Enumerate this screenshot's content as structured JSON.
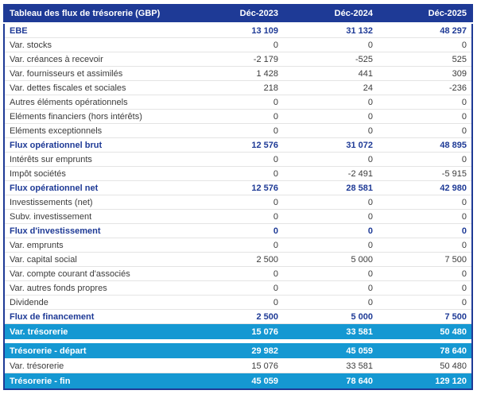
{
  "table": {
    "title": "Tableau des flux de trésorerie (GBP)",
    "columns": [
      "Déc-2023",
      "Déc-2024",
      "Déc-2025"
    ],
    "rows": [
      {
        "label": "EBE",
        "values": [
          "13 109",
          "31 132",
          "48 297"
        ],
        "style": "bold"
      },
      {
        "label": "Var. stocks",
        "values": [
          "0",
          "0",
          "0"
        ],
        "style": "normal"
      },
      {
        "label": "Var. créances à recevoir",
        "values": [
          "-2 179",
          "-525",
          "525"
        ],
        "style": "normal"
      },
      {
        "label": "Var. fournisseurs et assimilés",
        "values": [
          "1 428",
          "441",
          "309"
        ],
        "style": "normal"
      },
      {
        "label": "Var. dettes fiscales et sociales",
        "values": [
          "218",
          "24",
          "-236"
        ],
        "style": "normal"
      },
      {
        "label": "Autres éléments opérationnels",
        "values": [
          "0",
          "0",
          "0"
        ],
        "style": "normal"
      },
      {
        "label": "Eléments financiers (hors intérêts)",
        "values": [
          "0",
          "0",
          "0"
        ],
        "style": "normal"
      },
      {
        "label": "Eléments exceptionnels",
        "values": [
          "0",
          "0",
          "0"
        ],
        "style": "normal"
      },
      {
        "label": "Flux opérationnel brut",
        "values": [
          "12 576",
          "31 072",
          "48 895"
        ],
        "style": "bold"
      },
      {
        "label": "Intérêts sur emprunts",
        "values": [
          "0",
          "0",
          "0"
        ],
        "style": "normal"
      },
      {
        "label": "Impôt sociétés",
        "values": [
          "0",
          "-2 491",
          "-5 915"
        ],
        "style": "normal"
      },
      {
        "label": "Flux opérationnel net",
        "values": [
          "12 576",
          "28 581",
          "42 980"
        ],
        "style": "bold"
      },
      {
        "label": "Investissements (net)",
        "values": [
          "0",
          "0",
          "0"
        ],
        "style": "normal"
      },
      {
        "label": "Subv. investissement",
        "values": [
          "0",
          "0",
          "0"
        ],
        "style": "normal"
      },
      {
        "label": "Flux d'investissement",
        "values": [
          "0",
          "0",
          "0"
        ],
        "style": "bold"
      },
      {
        "label": "Var. emprunts",
        "values": [
          "0",
          "0",
          "0"
        ],
        "style": "normal"
      },
      {
        "label": "Var. capital social",
        "values": [
          "2 500",
          "5 000",
          "7 500"
        ],
        "style": "normal"
      },
      {
        "label": "Var. compte courant d'associés",
        "values": [
          "0",
          "0",
          "0"
        ],
        "style": "normal"
      },
      {
        "label": "Var. autres fonds propres",
        "values": [
          "0",
          "0",
          "0"
        ],
        "style": "normal"
      },
      {
        "label": "Dividende",
        "values": [
          "0",
          "0",
          "0"
        ],
        "style": "normal"
      },
      {
        "label": "Flux de financement",
        "values": [
          "2 500",
          "5 000",
          "7 500"
        ],
        "style": "bold"
      },
      {
        "label": "Var. trésorerie",
        "values": [
          "15 076",
          "33 581",
          "50 480"
        ],
        "style": "highlight"
      },
      {
        "label": "",
        "values": [],
        "style": "separator"
      },
      {
        "label": "Trésorerie - départ",
        "values": [
          "29 982",
          "45 059",
          "78 640"
        ],
        "style": "highlight"
      },
      {
        "label": "Var. trésorerie",
        "values": [
          "15 076",
          "33 581",
          "50 480"
        ],
        "style": "normal"
      },
      {
        "label": "Trésorerie - fin",
        "values": [
          "45 059",
          "78 640",
          "129 120"
        ],
        "style": "highlight"
      }
    ],
    "colors": {
      "header_bg": "#1e3a96",
      "highlight_bg": "#1598d2",
      "bold_text": "#1e3a96",
      "body_text": "#3b3b3b"
    }
  }
}
